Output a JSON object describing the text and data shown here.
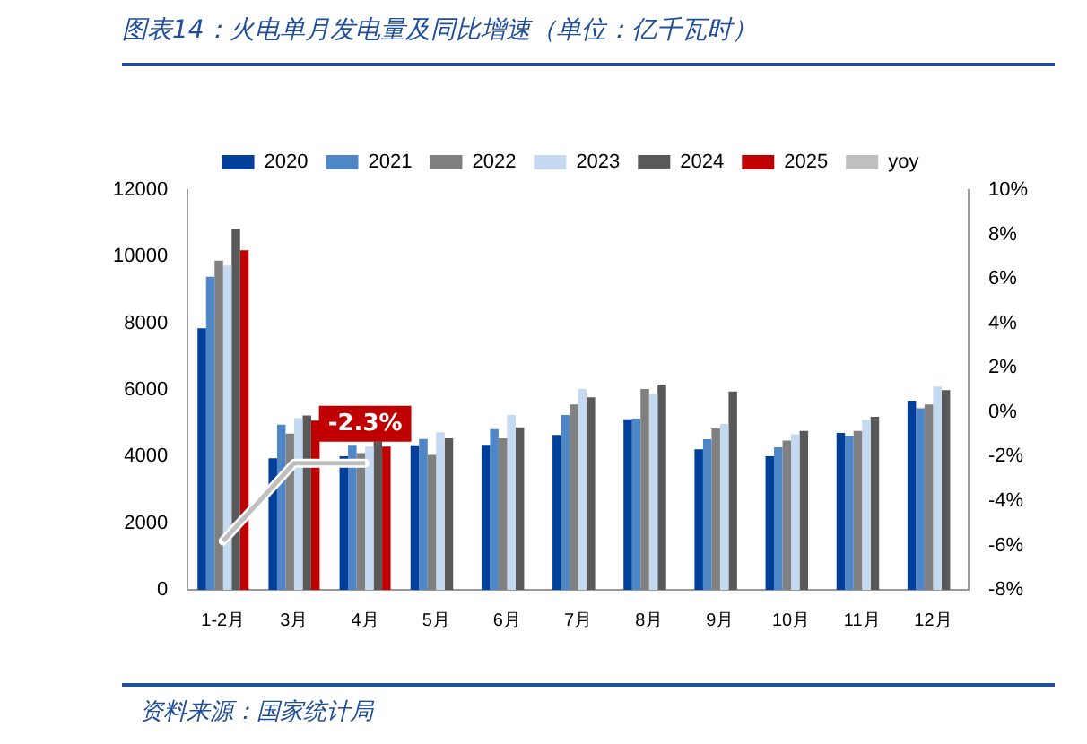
{
  "chart_data": {
    "type": "bar",
    "title": "图表14：火电单月发电量及同比增速（单位：亿千瓦时）",
    "categories": [
      "1-2月",
      "3月",
      "4月",
      "5月",
      "6月",
      "7月",
      "8月",
      "9月",
      "10月",
      "11月",
      "12月"
    ],
    "series": [
      {
        "name": "2020",
        "color": "#003f9a",
        "values": [
          7850,
          3950,
          4010,
          4340,
          4350,
          4650,
          5120,
          4220,
          4010,
          4710,
          5680
        ]
      },
      {
        "name": "2021",
        "color": "#4f86c6",
        "values": [
          9400,
          4960,
          4350,
          4530,
          4820,
          5250,
          5140,
          4520,
          4280,
          4630,
          5450
        ]
      },
      {
        "name": "2022",
        "color": "#808080",
        "values": [
          9880,
          4690,
          4100,
          4050,
          4550,
          5560,
          6030,
          4840,
          4480,
          4770,
          5560
        ]
      },
      {
        "name": "2023",
        "color": "#c5d9f1",
        "values": [
          9730,
          5150,
          4300,
          4730,
          5250,
          6030,
          5870,
          4980,
          4670,
          5100,
          6100
        ]
      },
      {
        "name": "2024",
        "color": "#595959",
        "values": [
          10830,
          5230,
          4450,
          4550,
          4880,
          5780,
          6160,
          5950,
          4770,
          5190,
          5990
        ]
      },
      {
        "name": "2025",
        "color": "#c00000",
        "values": [
          10190,
          5080,
          4300,
          null,
          null,
          null,
          null,
          null,
          null,
          null,
          null
        ]
      },
      {
        "name": "yoy",
        "type": "line",
        "axis": "y2",
        "color": "#bfbfbf",
        "values": [
          -5.8,
          -2.3,
          -2.3,
          null,
          null,
          null,
          null,
          null,
          null,
          null,
          null
        ],
        "value_labels": [
          null,
          null,
          "-2.3%",
          null,
          null,
          null,
          null,
          null,
          null,
          null,
          null
        ]
      }
    ],
    "ylim": [
      0,
      12000
    ],
    "yticks": [
      0,
      2000,
      4000,
      6000,
      8000,
      10000,
      12000
    ],
    "y2lim": [
      -8,
      10
    ],
    "y2ticks": [
      {
        "value": -8,
        "label": "-8%"
      },
      {
        "value": -6,
        "label": "-6%"
      },
      {
        "value": -4,
        "label": "-4%"
      },
      {
        "value": -2,
        "label": "-2%"
      },
      {
        "value": 0,
        "label": "0%"
      },
      {
        "value": 2,
        "label": "2%"
      },
      {
        "value": 4,
        "label": "4%"
      },
      {
        "value": 6,
        "label": "6%"
      },
      {
        "value": 8,
        "label": "8%"
      },
      {
        "value": 10,
        "label": "10%"
      }
    ],
    "grid": false,
    "legend": "top",
    "marker": "none",
    "annotations": [
      "资料来源：国家统计局"
    ]
  }
}
